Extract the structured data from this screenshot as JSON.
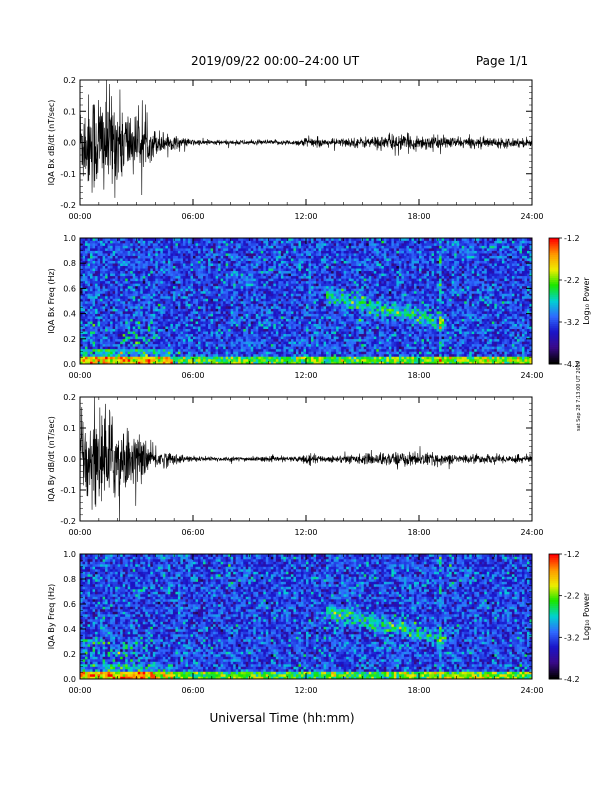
{
  "header": {
    "title": "2019/09/22  00:00–24:00 UT",
    "page": "Page 1/1"
  },
  "footer": {
    "xlabel": "Universal Time (hh:mm)"
  },
  "side_stamp": "sat Sep 28 7:13:00 UT 2019",
  "colorbar": {
    "title": "Log₁₀ Power",
    "ticks": [
      "-1.2",
      "-2.2",
      "-3.2",
      "-4.2"
    ],
    "colors": [
      "#ff0000",
      "#ff9a00",
      "#eded00",
      "#19e600",
      "#00d2d2",
      "#2f6bff",
      "#1a14c8",
      "#3a0a8a",
      "#000000"
    ]
  },
  "chart_data": [
    {
      "type": "line",
      "ylabel": "IQA Bx dB/dt (nT/sec)",
      "yticks": [
        "0.2",
        "0.1",
        "0.0",
        "-0.1",
        "-0.2"
      ],
      "ylim": [
        -0.2,
        0.2
      ],
      "xticks": [
        "00:00",
        "06:00",
        "12:00",
        "18:00",
        "24:00"
      ],
      "xlim_hours": [
        0,
        24
      ],
      "envelope": {
        "hours": [
          0,
          1,
          2,
          3,
          4,
          5,
          6,
          8,
          11.5,
          12,
          13,
          15,
          16.5,
          18,
          20,
          24
        ],
        "amplitude": [
          0.09,
          0.13,
          0.1,
          0.06,
          0.03,
          0.015,
          0.007,
          0.005,
          0.006,
          0.012,
          0.008,
          0.012,
          0.018,
          0.017,
          0.012,
          0.01
        ]
      }
    },
    {
      "type": "heatmap",
      "ylabel": "IQA Bx Freq (Hz)",
      "yticks": [
        "1.0",
        "0.8",
        "0.6",
        "0.4",
        "0.2",
        "0.0"
      ],
      "ylim": [
        0,
        1.0
      ],
      "xticks": [
        "00:00",
        "06:00",
        "12:00",
        "18:00",
        "24:00"
      ],
      "xlim_hours": [
        0,
        24
      ],
      "zlim": [
        -4.2,
        -1.2
      ]
    },
    {
      "type": "line",
      "ylabel": "IQA By dB/dt (nT/sec)",
      "yticks": [
        "0.2",
        "0.1",
        "0.0",
        "-0.1",
        "-0.2"
      ],
      "ylim": [
        -0.2,
        0.2
      ],
      "xticks": [
        "00:00",
        "06:00",
        "12:00",
        "18:00",
        "24:00"
      ],
      "xlim_hours": [
        0,
        24
      ],
      "envelope": {
        "hours": [
          0,
          1,
          2,
          3,
          4,
          5,
          6,
          8,
          11.5,
          12,
          13,
          15,
          16.5,
          18,
          20,
          24
        ],
        "amplitude": [
          0.08,
          0.12,
          0.09,
          0.05,
          0.025,
          0.012,
          0.006,
          0.005,
          0.006,
          0.012,
          0.007,
          0.011,
          0.016,
          0.015,
          0.01,
          0.009
        ]
      }
    },
    {
      "type": "heatmap",
      "ylabel": "IQA By Freq (Hz)",
      "yticks": [
        "1.0",
        "0.8",
        "0.6",
        "0.4",
        "0.2",
        "0.0"
      ],
      "ylim": [
        0,
        1.0
      ],
      "xticks": [
        "00:00",
        "06:00",
        "12:00",
        "18:00",
        "24:00"
      ],
      "xlim_hours": [
        0,
        24
      ],
      "zlim": [
        -4.2,
        -1.2
      ]
    }
  ]
}
